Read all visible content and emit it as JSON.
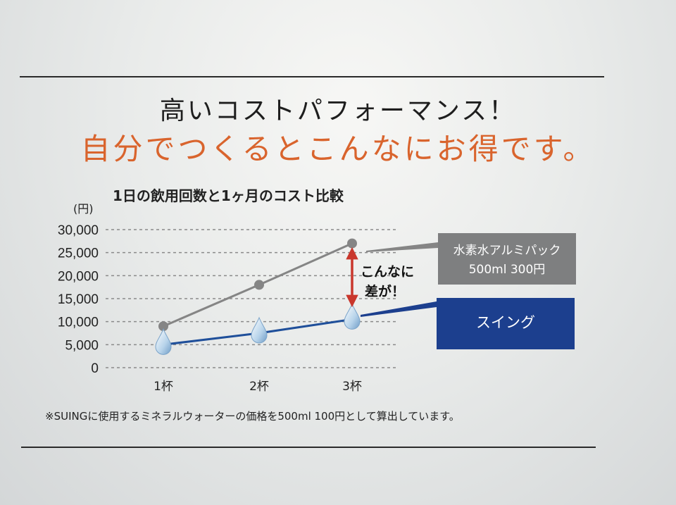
{
  "headline": "高いコストパフォーマンス！",
  "subheadline": "自分でつくるとこんなにお得です。",
  "footnote": "※SUINGに使用するミネラルウォーターの価格を500ml 100円として算出しています。",
  "colors": {
    "grey_series": "#858585",
    "blue_series": "#1f4f9a",
    "blue_label_bg": "#1c3f8e",
    "arrow": "#c9372c",
    "orange_text": "#d9642d"
  },
  "chart_data": {
    "type": "line",
    "title": "1日の飲用回数と1ヶ月のコスト比較",
    "y_unit": "(円)",
    "categories": [
      "1杯",
      "2杯",
      "3杯"
    ],
    "y_ticks": [
      "30,000",
      "25,000",
      "20,000",
      "15,000",
      "10,000",
      "5,000",
      "0"
    ],
    "ylim": [
      0,
      30000
    ],
    "grid": "dashed horizontal",
    "series": [
      {
        "name": "水素水アルミパック 500ml 300円",
        "name_line1": "水素水アルミパック",
        "name_line2": "500ml 300円",
        "values": [
          9000,
          18000,
          27000
        ],
        "marker": "circle"
      },
      {
        "name": "スイング",
        "values": [
          5000,
          7500,
          10500
        ],
        "marker": "droplet"
      }
    ],
    "annotation": {
      "line1": "こんなに",
      "line2": "差が！"
    }
  }
}
